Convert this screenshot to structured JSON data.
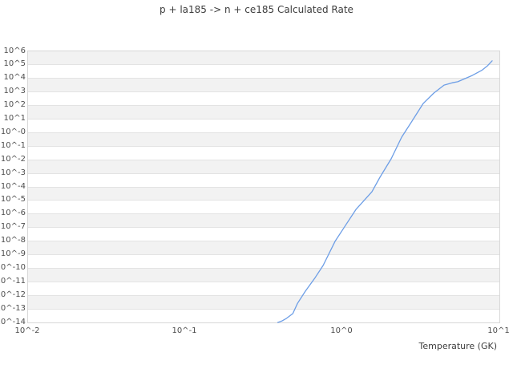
{
  "title": "p + la185 -> n + ce185 Calculated Rate",
  "chart_data": {
    "type": "line",
    "title": "p + la185 -> n + ce185 Calculated Rate",
    "xlabel": "Temperature (GK)",
    "ylabel": "",
    "x_scale": "log10",
    "y_scale": "log10",
    "xlim": [
      0.01,
      10
    ],
    "ylim": [
      1e-14,
      1000000.0
    ],
    "x_tick_labels": [
      "10^-2",
      "10^-1",
      "10^0",
      "10^1"
    ],
    "x_tick_log_values": [
      -2,
      -1,
      0,
      1
    ],
    "y_tick_labels": [
      "10^6",
      "10^5",
      "10^4",
      "10^3",
      "10^2",
      "10^1",
      "10^-0",
      "10^-1",
      "10^-2",
      "10^-3",
      "10^-4",
      "10^-5",
      "10^-6",
      "10^-7",
      "10^-8",
      "10^-9",
      "10^-10",
      "10^-11",
      "10^-12",
      "10^-13",
      "10^-14"
    ],
    "y_tick_log_values": [
      6,
      5,
      4,
      3,
      2,
      1,
      0,
      -1,
      -2,
      -3,
      -4,
      -5,
      -6,
      -7,
      -8,
      -9,
      -10,
      -11,
      -12,
      -13,
      -14
    ],
    "grid": "horizontal alternating bands, no vertical gridlines",
    "legend": "none",
    "series": [
      {
        "name": "calculated rate",
        "color": "#6d9ee6",
        "x_is": "log10(Temperature GK)",
        "y_is": "log10(rate)",
        "points": [
          [
            -0.41,
            -14.0
          ],
          [
            -0.385,
            -13.9
          ],
          [
            -0.355,
            -13.7
          ],
          [
            -0.315,
            -13.35
          ],
          [
            -0.285,
            -12.6
          ],
          [
            -0.235,
            -11.7
          ],
          [
            -0.173,
            -10.7
          ],
          [
            -0.122,
            -9.8
          ],
          [
            -0.046,
            -8.02
          ],
          [
            0.02,
            -6.85
          ],
          [
            0.087,
            -5.66
          ],
          [
            0.189,
            -4.36
          ],
          [
            0.24,
            -3.29
          ],
          [
            0.311,
            -1.93
          ],
          [
            0.378,
            -0.33
          ],
          [
            0.444,
            0.85
          ],
          [
            0.515,
            2.15
          ],
          [
            0.582,
            2.92
          ],
          [
            0.648,
            3.51
          ],
          [
            0.7,
            3.68
          ],
          [
            0.735,
            3.76
          ],
          [
            0.827,
            4.22
          ],
          [
            0.888,
            4.6
          ],
          [
            0.923,
            4.92
          ],
          [
            0.954,
            5.3
          ]
        ]
      }
    ]
  },
  "colors": {
    "band_gray": "#f2f2f2",
    "band_white": "#ffffff",
    "gridline": "#e3e3e3",
    "plot_border": "#d8d8d8",
    "tick_text": "#4d4d4d",
    "title_text": "#3d3d3d",
    "curve": "#6d9ee6",
    "background": "#ffffff"
  }
}
